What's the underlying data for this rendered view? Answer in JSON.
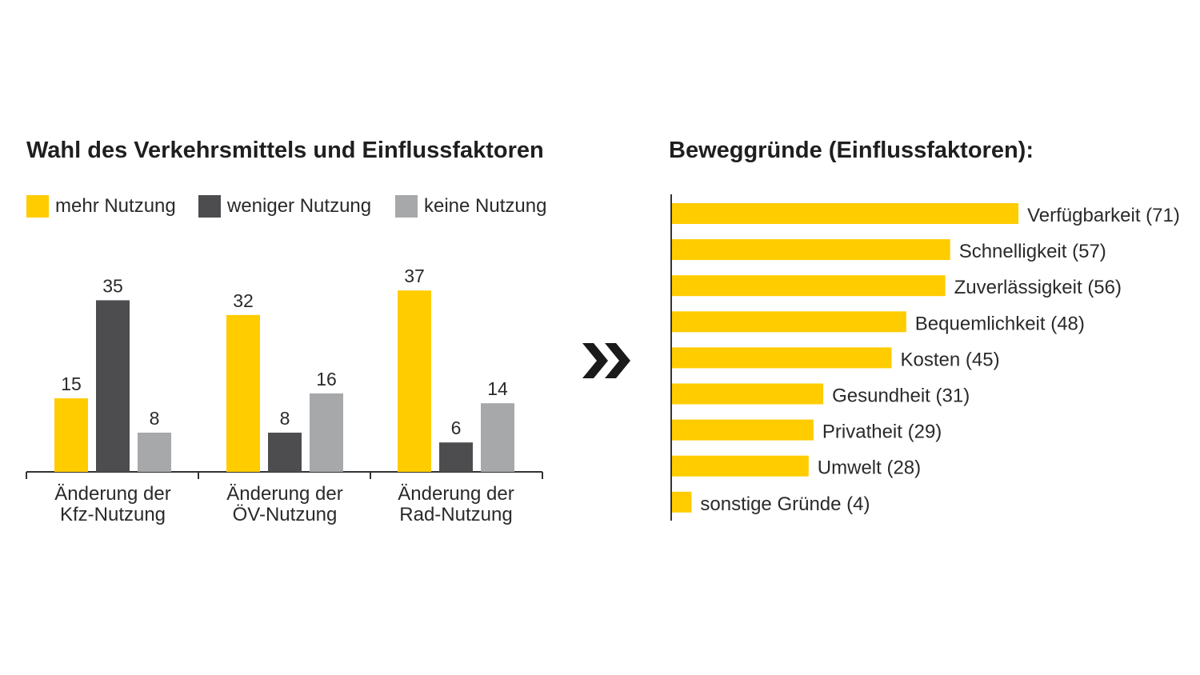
{
  "left_title": "Wahl des Verkehrsmittels und Einflussfaktoren",
  "right_title": "Beweggründe (Einflussfaktoren):",
  "legend": [
    {
      "label": "mehr Nutzung",
      "color": "#FFCC00"
    },
    {
      "label": "weniger Nutzung",
      "color": "#4D4D4F"
    },
    {
      "label": "keine Nutzung",
      "color": "#A7A8AA"
    }
  ],
  "chart_data": [
    {
      "type": "bar",
      "title": "Wahl des Verkehrsmittels und Einflussfaktoren",
      "categories": [
        [
          "Änderung der",
          "Kfz-Nutzung"
        ],
        [
          "Änderung der",
          "ÖV-Nutzung"
        ],
        [
          "Änderung der",
          "Rad-Nutzung"
        ]
      ],
      "series": [
        {
          "name": "mehr Nutzung",
          "color": "#FFCC00",
          "values": [
            15,
            32,
            37
          ]
        },
        {
          "name": "weniger Nutzung",
          "color": "#4D4D4F",
          "values": [
            35,
            8,
            6
          ]
        },
        {
          "name": "keine Nutzung",
          "color": "#A7A8AA",
          "values": [
            8,
            16,
            14
          ]
        }
      ],
      "legend": "top-left",
      "grid": false
    },
    {
      "type": "bar",
      "orientation": "horizontal",
      "title": "Beweggründe (Einflussfaktoren):",
      "color": "#FFCC00",
      "items": [
        {
          "label": "Verfügbarkeit (71)",
          "value": 71
        },
        {
          "label": "Schnelligkeit (57)",
          "value": 57
        },
        {
          "label": "Zuverlässigkeit (56)",
          "value": 56
        },
        {
          "label": "Bequemlichkeit (48)",
          "value": 48
        },
        {
          "label": "Kosten (45)",
          "value": 45
        },
        {
          "label": "Gesundheit (31)",
          "value": 31
        },
        {
          "label": "Privatheit (29)",
          "value": 29
        },
        {
          "label": "Umwelt (28)",
          "value": 28
        },
        {
          "label": "sonstige Gründe (4)",
          "value": 4
        }
      ],
      "grid": false
    }
  ]
}
